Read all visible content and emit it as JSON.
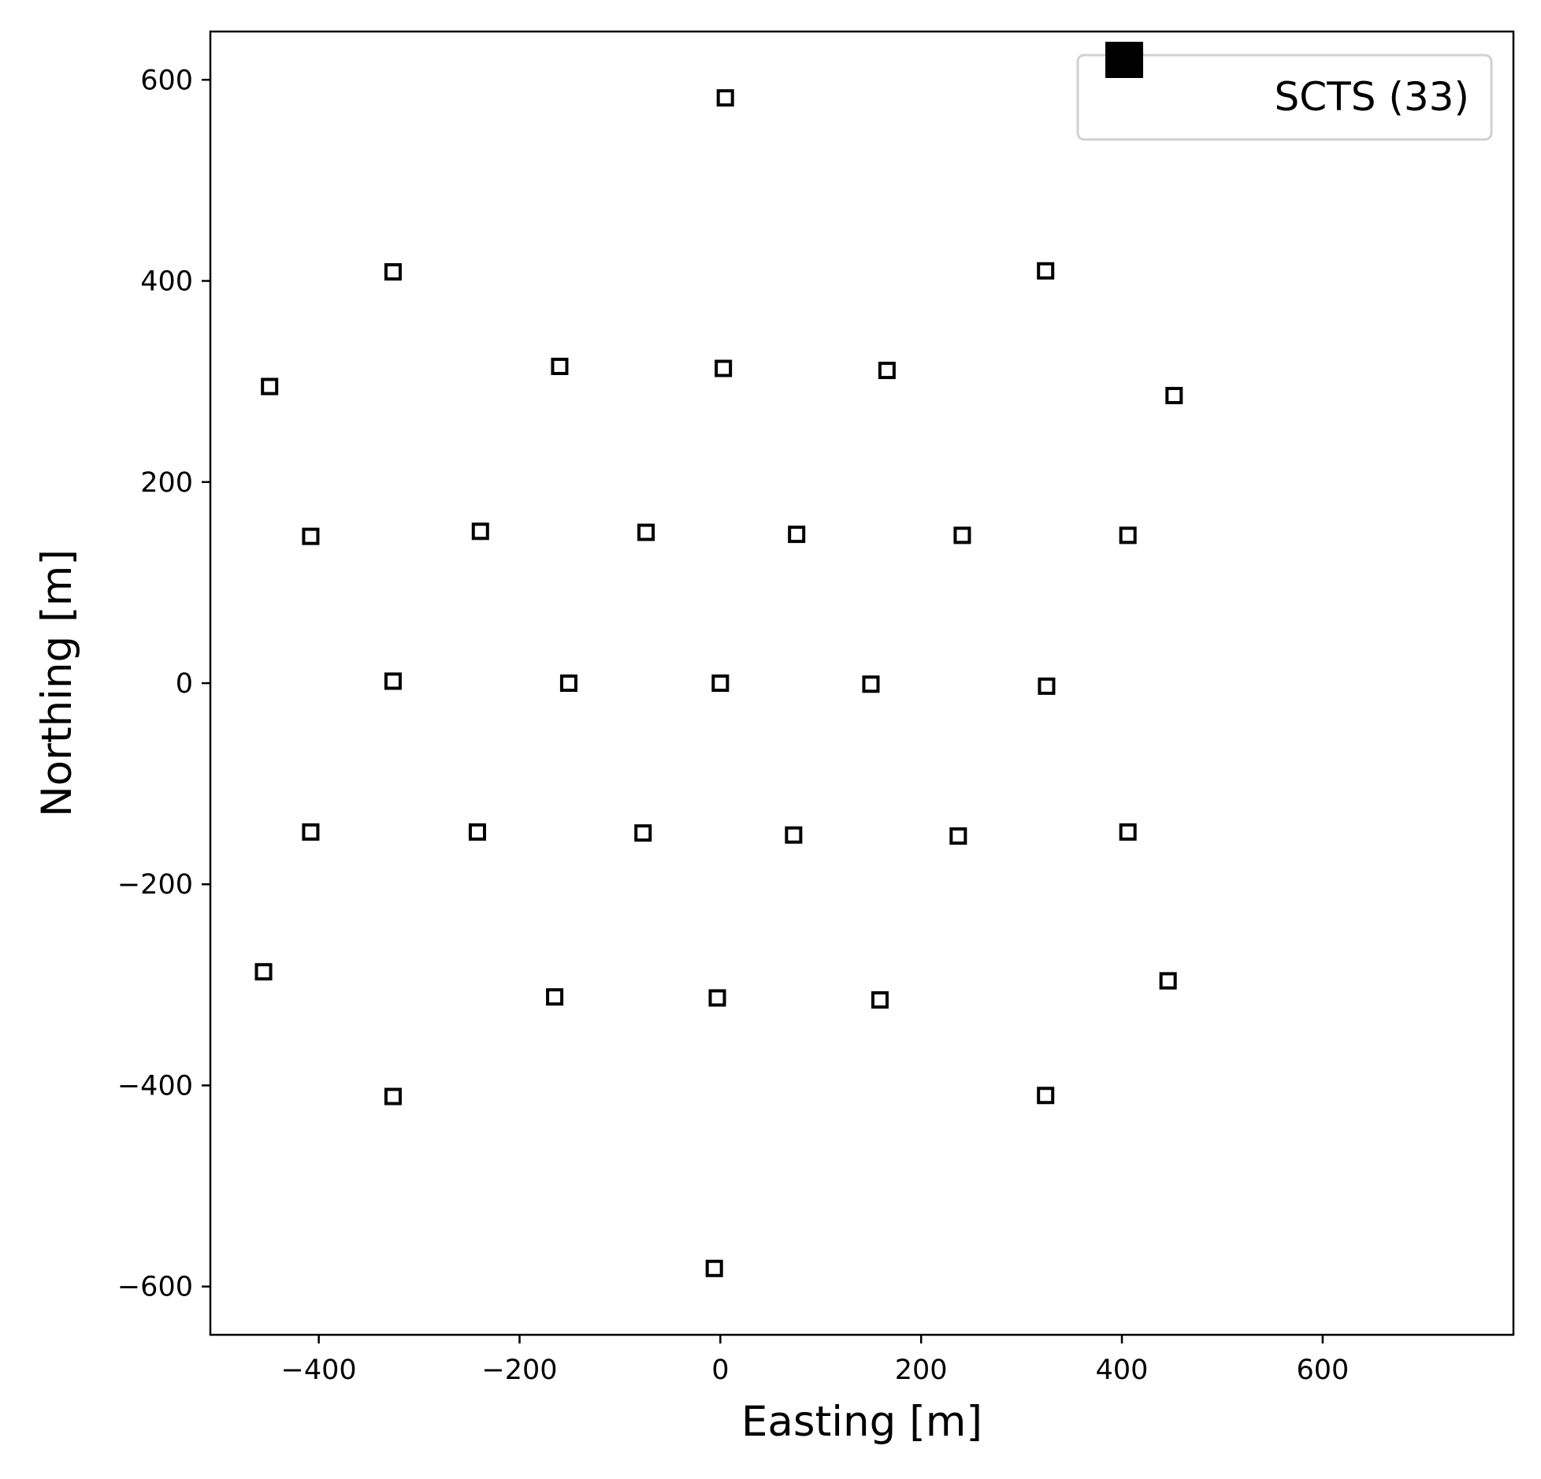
{
  "chart_data": {
    "type": "scatter",
    "xlabel": "Easting [m]",
    "ylabel": "Northing [m]",
    "xlim": [
      -508,
      790
    ],
    "ylim": [
      -648,
      648
    ],
    "xticks": [
      -400,
      -200,
      0,
      200,
      400,
      600
    ],
    "yticks": [
      -600,
      -400,
      -200,
      0,
      200,
      400,
      600
    ],
    "grid": false,
    "legend_position": "top-right",
    "marker": "square-open",
    "series": [
      {
        "name": "SCTS (33)",
        "color": "#000000",
        "points": [
          {
            "x": 5,
            "y": 582
          },
          {
            "x": -326,
            "y": 409
          },
          {
            "x": 324,
            "y": 410
          },
          {
            "x": -449,
            "y": 295
          },
          {
            "x": -160,
            "y": 315
          },
          {
            "x": 3,
            "y": 313
          },
          {
            "x": 166,
            "y": 311
          },
          {
            "x": 452,
            "y": 286
          },
          {
            "x": -408,
            "y": 146
          },
          {
            "x": -239,
            "y": 151
          },
          {
            "x": -74,
            "y": 150
          },
          {
            "x": 76,
            "y": 148
          },
          {
            "x": 241,
            "y": 147
          },
          {
            "x": 406,
            "y": 147
          },
          {
            "x": -326,
            "y": 2
          },
          {
            "x": -151,
            "y": 0
          },
          {
            "x": 0,
            "y": 0
          },
          {
            "x": 150,
            "y": -1
          },
          {
            "x": 325,
            "y": -3
          },
          {
            "x": -408,
            "y": -148
          },
          {
            "x": -242,
            "y": -148
          },
          {
            "x": -77,
            "y": -149
          },
          {
            "x": 73,
            "y": -151
          },
          {
            "x": 237,
            "y": -152
          },
          {
            "x": 406,
            "y": -148
          },
          {
            "x": -455,
            "y": -287
          },
          {
            "x": -165,
            "y": -312
          },
          {
            "x": -3,
            "y": -313
          },
          {
            "x": 159,
            "y": -315
          },
          {
            "x": 446,
            "y": -296
          },
          {
            "x": -326,
            "y": -411
          },
          {
            "x": 324,
            "y": -410
          },
          {
            "x": -6,
            "y": -582
          }
        ]
      }
    ]
  }
}
